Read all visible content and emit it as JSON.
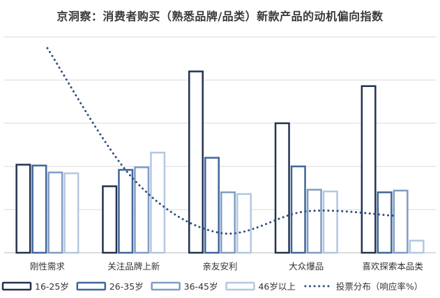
{
  "chart_data": {
    "type": "bar",
    "title": "京洞察：消费者购买（熟悉品牌/品类）新款产品的动机偏向指数",
    "categories": [
      "刚性需求",
      "关注品牌上新",
      "亲友安利",
      "大众爆品",
      "喜欢探索本品类"
    ],
    "series": [
      {
        "name": "16-25岁",
        "color": "#22324f",
        "values": [
          102,
          77,
          210,
          150,
          193
        ]
      },
      {
        "name": "26-35岁",
        "color": "#3f6698",
        "values": [
          101,
          96,
          110,
          100,
          70
        ]
      },
      {
        "name": "36-45岁",
        "color": "#7f9cc4",
        "values": [
          93,
          99,
          70,
          73,
          72
        ]
      },
      {
        "name": "46岁以上",
        "color": "#b4c6e1",
        "values": [
          92,
          116,
          68,
          71,
          14
        ]
      }
    ],
    "line_series": {
      "name": "投票分布（响应率%）",
      "color": "#2f4f80",
      "style": "dotted",
      "values": [
        237,
        85,
        23,
        48,
        43
      ]
    },
    "ylim": [
      0,
      260
    ],
    "gridlines": [
      0,
      50,
      100,
      150,
      200,
      250
    ],
    "grid": true,
    "legend_position": "bottom"
  }
}
